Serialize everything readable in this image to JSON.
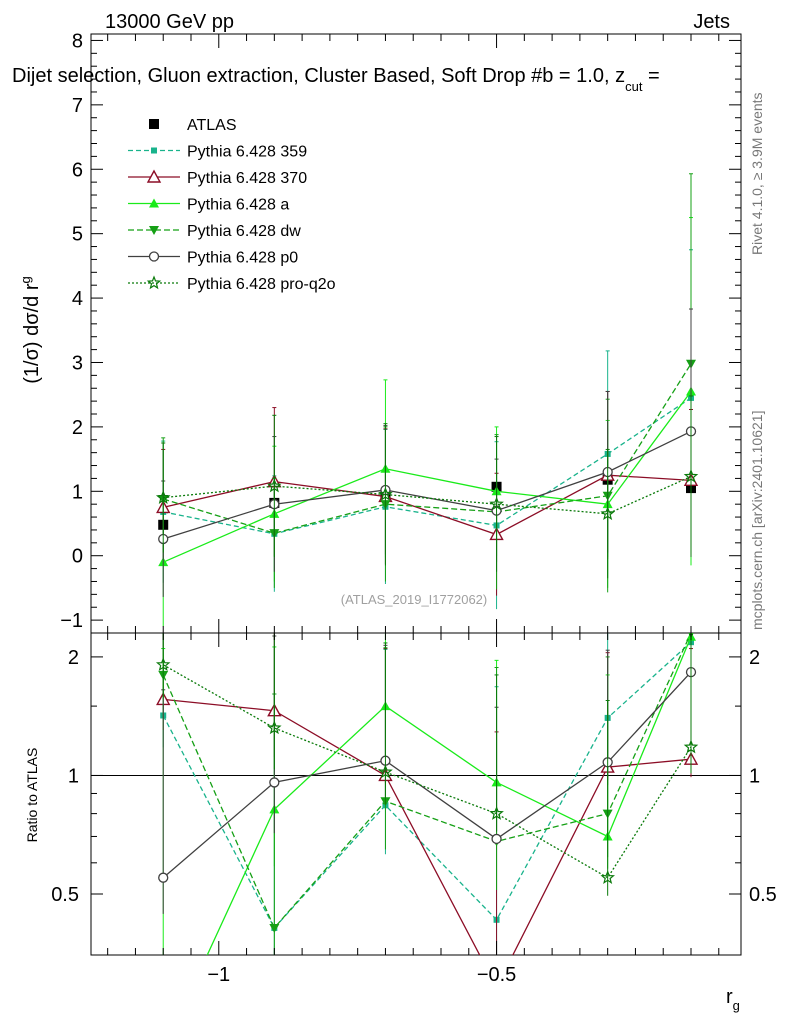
{
  "header": {
    "left": "13000 GeV pp",
    "right": "Jets",
    "subtitle": "Dijet selection, Gluon extraction, Cluster Based, Soft Drop #b = 1.0, z",
    "subtitle_sub": "cut",
    "subtitle_tail": " ="
  },
  "side_labels": {
    "rivet": "Rivet 4.1.0, ≥ 3.9M events",
    "mcplots": "mcplots.cern.ch [arXiv:2401.10621]"
  },
  "watermark": "(ATLAS_2019_I1772062)",
  "colors": {
    "atlas": "#000000",
    "p359": "#19b38c",
    "p370": "#8c0d26",
    "pa": "#1aeb1a",
    "pdw": "#15a015",
    "pp0": "#404040",
    "pq2o": "#0a7a0a"
  },
  "chart_data": [
    {
      "type": "line",
      "panel": "main",
      "ylabel": "(1/σ) dσ/d r",
      "ylabel_sub": "g",
      "ylim": [
        -1.2,
        8.1
      ],
      "yticks": [
        -1,
        0,
        1,
        2,
        3,
        4,
        5,
        6,
        7,
        8
      ],
      "x": [
        -1.1,
        -0.9,
        -0.7,
        -0.5,
        -0.3,
        -0.15
      ],
      "legend": [
        "ATLAS",
        "Pythia 6.428 359",
        "Pythia 6.428 370",
        "Pythia 6.428 a",
        "Pythia 6.428 dw",
        "Pythia 6.428 p0",
        "Pythia 6.428 pro-q2o"
      ],
      "series": [
        {
          "name": "ATLAS",
          "key": "atlas",
          "values": [
            0.48,
            0.82,
            0.95,
            1.07,
            1.18,
            1.05
          ],
          "err": [
            0.05,
            0.05,
            0.05,
            0.05,
            0.08,
            0.07
          ]
        },
        {
          "name": "Pythia 6.428 359",
          "key": "p359",
          "values": [
            0.68,
            0.34,
            0.76,
            0.47,
            1.58,
            2.45
          ],
          "err": [
            1.1,
            0.9,
            1.2,
            1.3,
            1.6,
            2.3
          ]
        },
        {
          "name": "Pythia 6.428 370",
          "key": "p370",
          "values": [
            0.75,
            1.15,
            0.92,
            0.33,
            1.25,
            1.17
          ],
          "err": [
            0.9,
            1.15,
            1.05,
            0.95,
            1.3,
            1.1
          ]
        },
        {
          "name": "Pythia 6.428 a",
          "key": "pa",
          "values": [
            -0.1,
            0.65,
            1.35,
            1.0,
            0.8,
            2.55
          ],
          "err": [
            1.0,
            1.05,
            1.38,
            1.0,
            1.3,
            2.7
          ]
        },
        {
          "name": "Pythia 6.428 dw",
          "key": "pdw",
          "values": [
            0.88,
            0.35,
            0.8,
            0.68,
            0.93,
            2.98
          ],
          "err": [
            0.95,
            0.85,
            1.2,
            1.2,
            1.5,
            2.95
          ]
        },
        {
          "name": "Pythia 6.428 p0",
          "key": "pp0",
          "values": [
            0.26,
            0.8,
            1.02,
            0.7,
            1.3,
            1.93
          ],
          "err": [
            0.9,
            1.05,
            1.0,
            0.8,
            1.25,
            1.9
          ]
        },
        {
          "name": "Pythia 6.428 pro-q2o",
          "key": "pq2o",
          "values": [
            0.9,
            1.08,
            0.95,
            0.8,
            0.65,
            1.23
          ],
          "err": [
            0.85,
            1.1,
            1.1,
            1.05,
            1.0,
            1.25
          ]
        }
      ]
    },
    {
      "type": "line",
      "panel": "ratio",
      "ylabel": "Ratio to ATLAS",
      "xlabel": "r",
      "xlabel_sub": "g",
      "xlim": [
        -1.23,
        -0.06
      ],
      "xticks": [
        -1,
        -0.5
      ],
      "xtick_labels": [
        "−1",
        "−0.5"
      ],
      "ylim": [
        0.35,
        2.3
      ],
      "yticks": [
        0.5,
        1,
        2
      ],
      "ytick_labels": [
        "0.5",
        "1",
        "2"
      ],
      "reference": 1,
      "x": [
        -1.1,
        -0.9,
        -0.7,
        -0.5,
        -0.3,
        -0.15
      ],
      "series": [
        {
          "name": "Pythia 6.428 359",
          "key": "p359",
          "values": [
            1.42,
            0.41,
            0.84,
            0.43,
            1.4,
            2.18
          ],
          "err": [
            1.2,
            1.2,
            1.25,
            1.25,
            1.3,
            1.3
          ]
        },
        {
          "name": "Pythia 6.428 370",
          "key": "p370",
          "values": [
            1.56,
            1.46,
            1.0,
            0.29,
            1.05,
            1.1
          ],
          "err": [
            1.2,
            1.4,
            1.1,
            1.0,
            1.0,
            1.0
          ]
        },
        {
          "name": "Pythia 6.428 a",
          "key": "pa",
          "values": [
            0.2,
            0.82,
            1.5,
            0.96,
            0.7,
            2.25
          ],
          "err": [
            1.9,
            1.3,
            1.45,
            1.0,
            1.1,
            1.3
          ]
        },
        {
          "name": "Pythia 6.428 dw",
          "key": "pdw",
          "values": [
            1.8,
            0.41,
            0.86,
            0.68,
            0.8,
            2.3
          ],
          "err": [
            1.3,
            1.2,
            1.25,
            1.2,
            1.2,
            1.3
          ]
        },
        {
          "name": "Pythia 6.428 p0",
          "key": "pp0",
          "values": [
            0.55,
            0.96,
            1.09,
            0.69,
            1.08,
            1.83
          ],
          "err": [
            1.1,
            1.3,
            1.05,
            0.8,
            1.0,
            1.3
          ]
        },
        {
          "name": "Pythia 6.428 pro-q2o",
          "key": "pq2o",
          "values": [
            1.91,
            1.32,
            1.02,
            0.8,
            0.55,
            1.18
          ],
          "err": [
            1.3,
            1.3,
            1.15,
            1.0,
            1.0,
            1.1
          ]
        }
      ]
    }
  ]
}
